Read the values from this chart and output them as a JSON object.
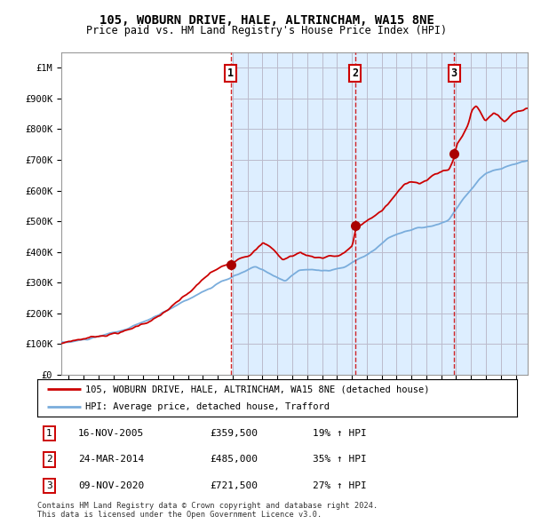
{
  "title": "105, WOBURN DRIVE, HALE, ALTRINCHAM, WA15 8NE",
  "subtitle": "Price paid vs. HM Land Registry's House Price Index (HPI)",
  "legend_line1": "105, WOBURN DRIVE, HALE, ALTRINCHAM, WA15 8NE (detached house)",
  "legend_line2": "HPI: Average price, detached house, Trafford",
  "transactions": [
    {
      "num": 1,
      "date": "16-NOV-2005",
      "price": 359500,
      "pct": "19%",
      "dir": "↑",
      "x_year": 2005.87
    },
    {
      "num": 2,
      "date": "24-MAR-2014",
      "price": 485000,
      "pct": "35%",
      "dir": "↑",
      "x_year": 2014.23
    },
    {
      "num": 3,
      "date": "09-NOV-2020",
      "price": 721500,
      "pct": "27%",
      "dir": "↑",
      "x_year": 2020.86
    }
  ],
  "footer1": "Contains HM Land Registry data © Crown copyright and database right 2024.",
  "footer2": "This data is licensed under the Open Government Licence v3.0.",
  "hpi_color": "#7aaddc",
  "price_color": "#cc0000",
  "dot_color": "#aa0000",
  "vline_color": "#cc0000",
  "bg_fill_color": "#ddeeff",
  "grid_color": "#cccccc",
  "ylim": [
    0,
    1050000
  ],
  "xlim_start": 1994.5,
  "xlim_end": 2025.8,
  "background_color": "#ffffff"
}
